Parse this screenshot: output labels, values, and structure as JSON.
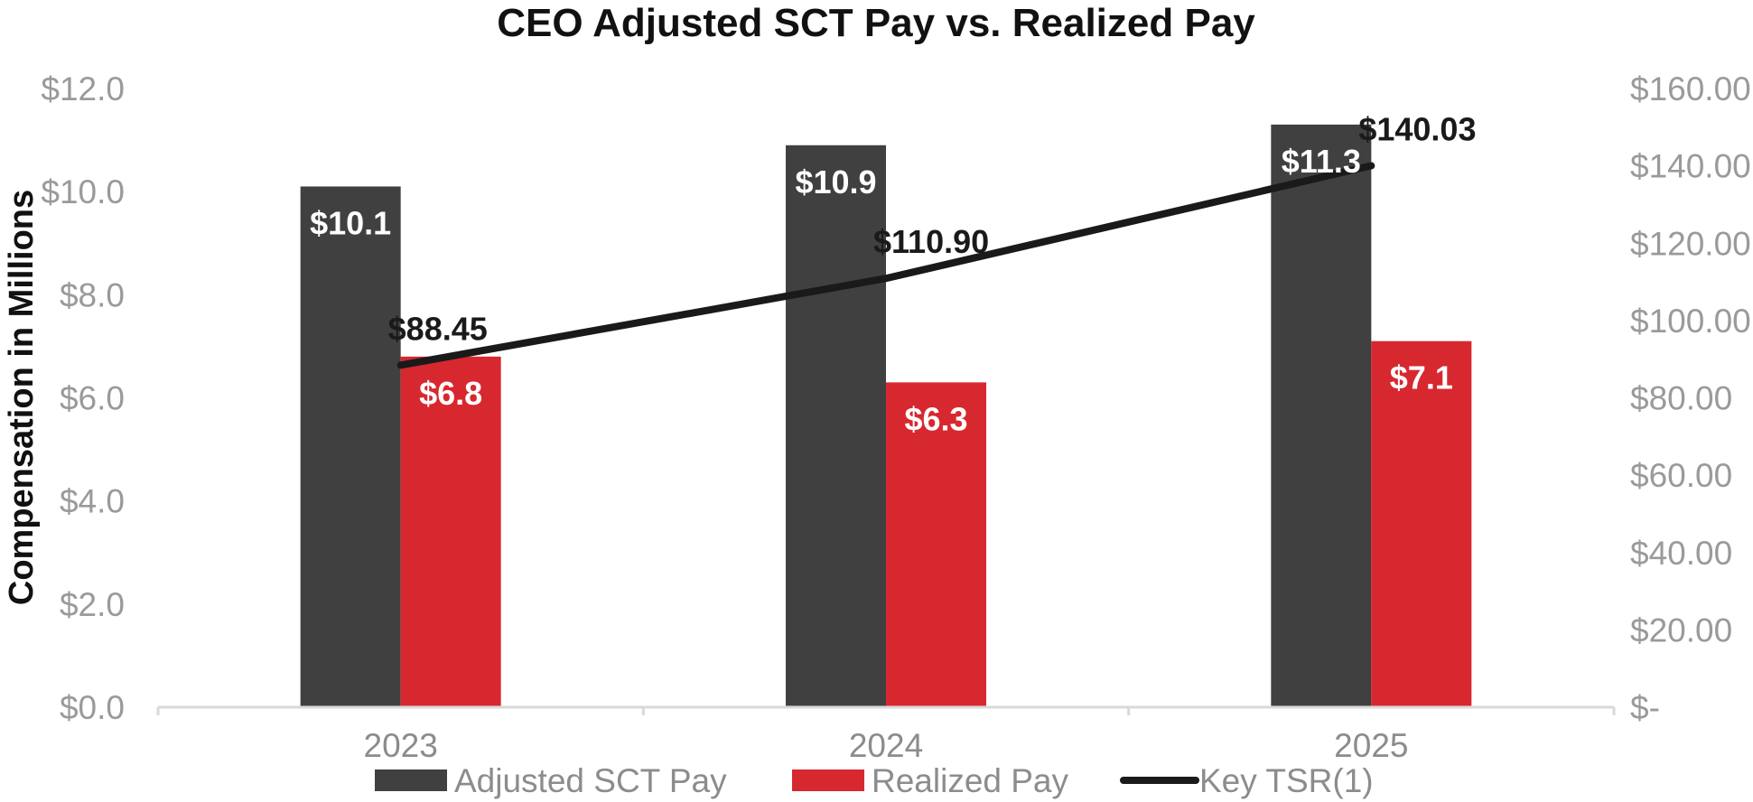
{
  "chart_data": {
    "type": "bar",
    "title": "CEO Adjusted SCT Pay vs. Realized Pay",
    "ylabel": "Compensation in Millions",
    "categories": [
      "2023",
      "2024",
      "2025"
    ],
    "ylim": [
      0,
      12
    ],
    "y_ticks": [
      "$0.0",
      "$2.0",
      "$4.0",
      "$6.0",
      "$8.0",
      "$10.0",
      "$12.0"
    ],
    "y2lim": [
      0,
      160
    ],
    "y2_ticks": [
      "$-",
      "$20.00",
      "$40.00",
      "$60.00",
      "$80.00",
      "$100.00",
      "$120.00",
      "$140.00",
      "$160.00"
    ],
    "series": [
      {
        "name": "Adjusted SCT Pay",
        "type": "bar",
        "axis": "left",
        "color": "#404040",
        "values": [
          10.1,
          10.9,
          11.3
        ],
        "labels": [
          "$10.1",
          "$10.9",
          "$11.3"
        ]
      },
      {
        "name": "Realized Pay",
        "type": "bar",
        "axis": "left",
        "color": "#d7282f",
        "values": [
          6.8,
          6.3,
          7.1
        ],
        "labels": [
          "$6.8",
          "$6.3",
          "$7.1"
        ]
      },
      {
        "name": "Key TSR(1)",
        "type": "line",
        "axis": "right",
        "color": "#1a1a1a",
        "values": [
          88.45,
          110.9,
          140.03
        ],
        "labels": [
          "$88.45",
          "$110.90",
          "$140.03"
        ]
      }
    ],
    "grid": false,
    "legend": "bottom"
  }
}
